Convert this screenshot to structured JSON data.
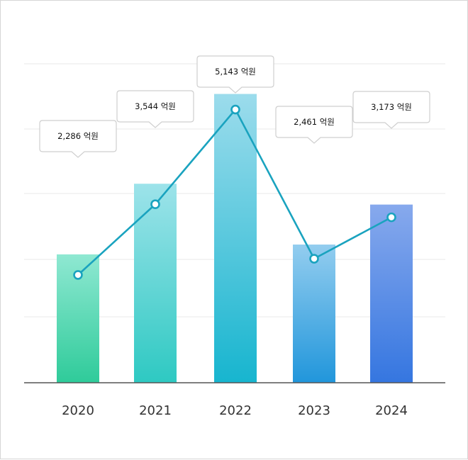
{
  "chart_data": {
    "type": "bar",
    "categories": [
      "2020",
      "2021",
      "2022",
      "2023",
      "2024"
    ],
    "series": [
      {
        "kind": "bar",
        "values": [
          2286,
          3544,
          5143,
          2461,
          3173
        ],
        "data_labels": [
          "2,286 억원",
          "3,544 억원",
          "5,143 억원",
          "2,461 억원",
          "3,173 억원"
        ]
      },
      {
        "kind": "line",
        "values": [
          2286,
          3544,
          5143,
          2461,
          3173
        ]
      }
    ],
    "title": "",
    "xlabel": "",
    "ylabel": "",
    "ylim": [
      0,
      7000
    ],
    "grid": true,
    "legend": "none",
    "colors": {
      "bar_gradients": [
        [
          "#8fe8d2",
          "#2fcb9a"
        ],
        [
          "#9de3ea",
          "#2ec9c2"
        ],
        [
          "#9cdcec",
          "#17b5cf"
        ],
        [
          "#93cdef",
          "#2196db"
        ],
        [
          "#87a9ed",
          "#3576e0"
        ]
      ],
      "line": "#1aa3bf",
      "grid": "#e8e8e8",
      "axis": "#555555"
    }
  }
}
